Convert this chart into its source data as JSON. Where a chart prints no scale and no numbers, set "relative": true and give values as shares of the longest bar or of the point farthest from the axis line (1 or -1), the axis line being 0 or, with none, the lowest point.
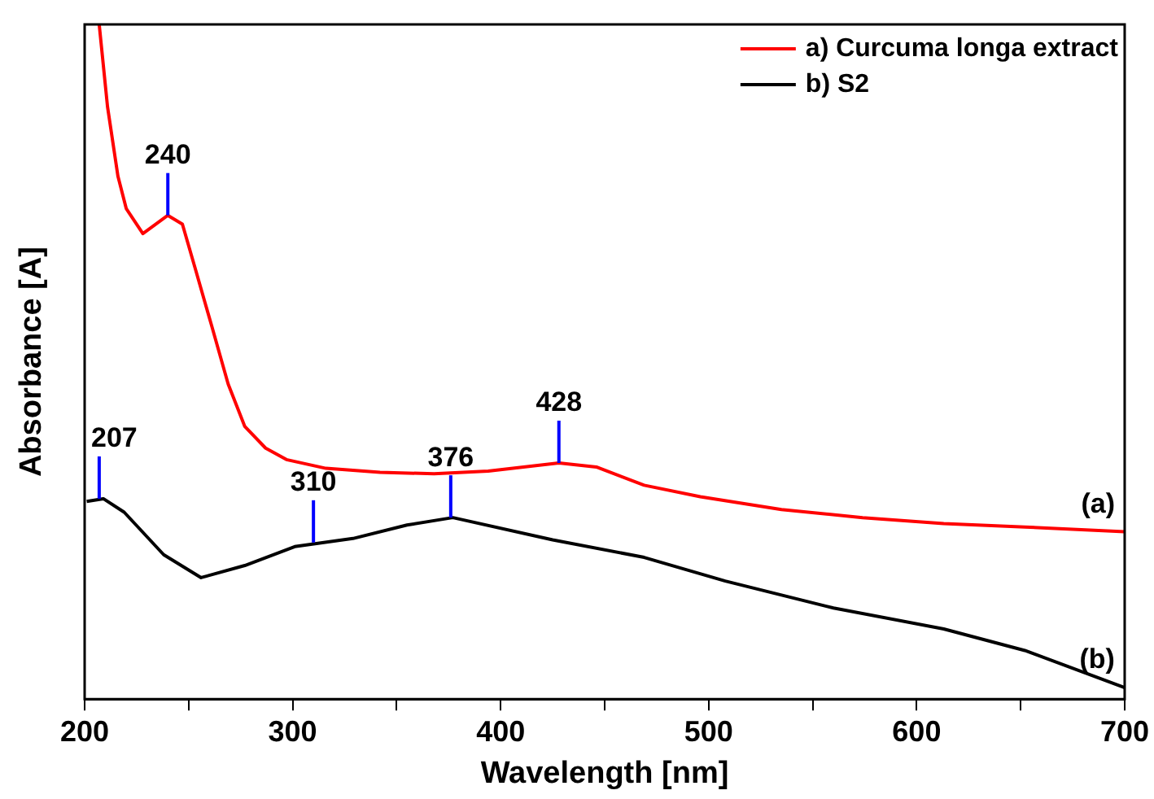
{
  "chart_data": {
    "type": "line",
    "relative": true,
    "xlabel": "Wavelength [nm]",
    "ylabel": "Absorbance [A]",
    "xlim": [
      200,
      700
    ],
    "xticks": [
      200,
      {
        "value": 250,
        "label": null
      },
      300,
      {
        "value": 350,
        "label": null
      },
      400,
      {
        "value": 450,
        "label": null
      },
      500,
      {
        "value": 550,
        "label": null
      },
      600,
      {
        "value": 650,
        "label": null
      },
      700
    ],
    "legend": "top right",
    "grid": false,
    "marker": "none",
    "line_style": "solid",
    "series": [
      {
        "name": "a) Curcuma longa extract",
        "color": "#ff0000",
        "x": [
          207,
          211,
          216,
          220,
          228,
          240,
          247,
          253,
          261,
          269,
          277,
          287,
          297,
          316,
          342,
          368,
          394,
          428,
          446,
          469,
          496,
          535,
          574,
          613,
          652,
          700
        ],
        "values": [
          1.0,
          0.878,
          0.775,
          0.727,
          0.69,
          0.717,
          0.704,
          0.64,
          0.554,
          0.467,
          0.404,
          0.372,
          0.355,
          0.342,
          0.336,
          0.334,
          0.338,
          0.35,
          0.344,
          0.317,
          0.3,
          0.281,
          0.269,
          0.26,
          0.255,
          0.248
        ]
      },
      {
        "name": "b) S2",
        "color": "#000000",
        "x": [
          201,
          209,
          219,
          238,
          256,
          277,
          301,
          329,
          355,
          377,
          425,
          469,
          508,
          560,
          613,
          652,
          700
        ],
        "values": [
          0.293,
          0.297,
          0.277,
          0.214,
          0.18,
          0.198,
          0.226,
          0.238,
          0.258,
          0.269,
          0.236,
          0.21,
          0.175,
          0.135,
          0.104,
          0.072,
          0.017
        ]
      }
    ],
    "annotations": [
      {
        "text": "240",
        "x": 240,
        "y": 0.717
      },
      {
        "text": "428",
        "x": 428,
        "y": 0.35
      },
      {
        "text": "207",
        "x": 207,
        "y": 0.297
      },
      {
        "text": "310",
        "x": 310,
        "y": 0.232
      },
      {
        "text": "376",
        "x": 376,
        "y": 0.269
      },
      "(a)",
      "(b)"
    ]
  }
}
